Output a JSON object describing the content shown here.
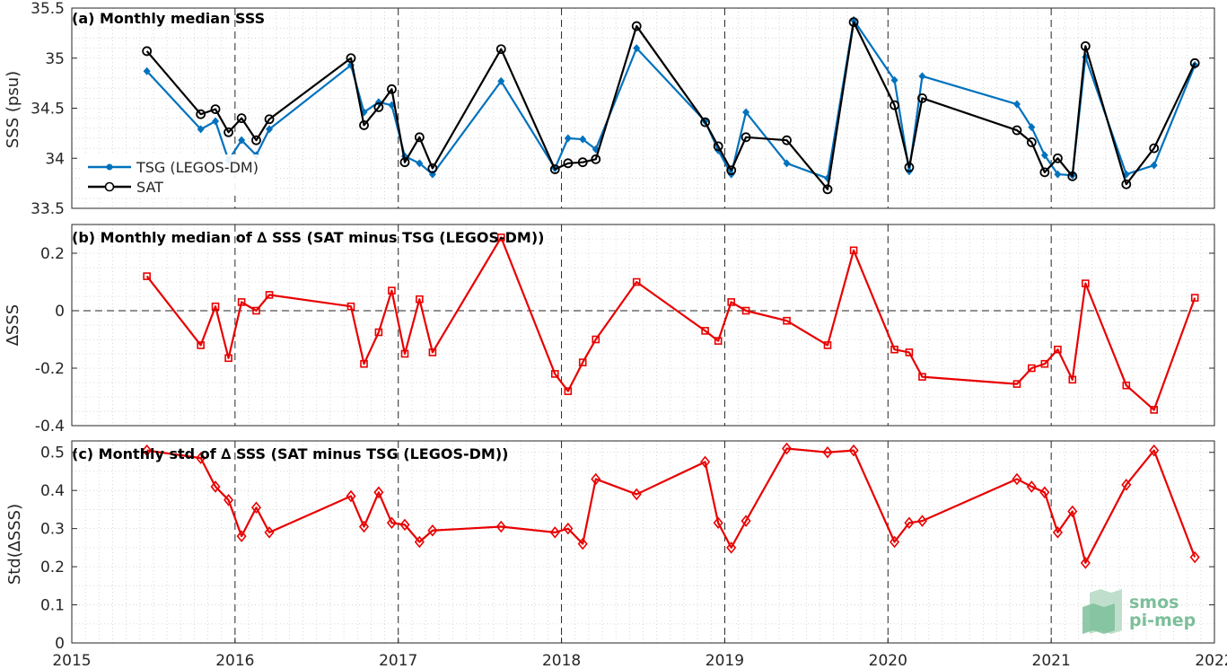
{
  "colors": {
    "tsg": "#0072BD",
    "sat": "#000000",
    "delta": "#E80000",
    "logo": "#7cbf9a"
  },
  "logo": {
    "line1": "smos",
    "line2": "pi-mep"
  },
  "chart_data": [
    {
      "type": "line",
      "title": "(a) Monthly median SSS",
      "ylabel": "SSS (psu)",
      "xlim": [
        2015,
        2022
      ],
      "ylim": [
        33.5,
        35.5
      ],
      "yticks": [
        "33.5",
        "34",
        "34.5",
        "35",
        "35.5"
      ],
      "grid": true,
      "legend": "center-left",
      "series": [
        {
          "name": "TSG (LEGOS-DM)",
          "marker": "dot",
          "x": [
            2015.46,
            2015.79,
            2015.88,
            2015.96,
            2016.04,
            2016.13,
            2016.21,
            2016.71,
            2016.79,
            2016.88,
            2016.96,
            2017.04,
            2017.13,
            2017.21,
            2017.63,
            2017.96,
            2018.04,
            2018.13,
            2018.21,
            2018.46,
            2018.88,
            2018.96,
            2019.04,
            2019.13,
            2019.38,
            2019.63,
            2019.79,
            2020.04,
            2020.13,
            2020.21,
            2020.79,
            2020.88,
            2020.96,
            2021.04,
            2021.13,
            2021.21,
            2021.46,
            2021.63,
            2021.88
          ],
          "y": [
            34.87,
            34.29,
            34.37,
            33.98,
            34.18,
            34.03,
            34.29,
            34.93,
            34.46,
            34.56,
            34.53,
            34.02,
            33.95,
            33.84,
            34.77,
            33.9,
            34.2,
            34.19,
            34.09,
            35.1,
            34.37,
            34.08,
            33.84,
            34.46,
            33.95,
            33.8,
            35.38,
            34.78,
            33.87,
            34.82,
            34.54,
            34.31,
            34.03,
            33.84,
            33.83,
            35.01,
            33.84,
            33.93,
            34.93
          ]
        },
        {
          "name": "SAT",
          "marker": "circle",
          "x": [
            2015.46,
            2015.79,
            2015.88,
            2015.96,
            2016.04,
            2016.13,
            2016.21,
            2016.71,
            2016.79,
            2016.88,
            2016.96,
            2017.04,
            2017.13,
            2017.21,
            2017.63,
            2017.96,
            2018.04,
            2018.13,
            2018.21,
            2018.46,
            2018.88,
            2018.96,
            2019.04,
            2019.13,
            2019.38,
            2019.63,
            2019.79,
            2020.04,
            2020.13,
            2020.21,
            2020.79,
            2020.88,
            2020.96,
            2021.04,
            2021.13,
            2021.21,
            2021.46,
            2021.63,
            2021.88
          ],
          "y": [
            35.07,
            34.44,
            34.49,
            34.26,
            34.4,
            34.18,
            34.39,
            35.0,
            34.33,
            34.51,
            34.69,
            33.96,
            34.21,
            33.9,
            35.09,
            33.89,
            33.95,
            33.96,
            33.99,
            35.32,
            34.36,
            34.12,
            33.88,
            34.21,
            34.18,
            33.69,
            35.36,
            34.53,
            33.91,
            34.6,
            34.28,
            34.16,
            33.86,
            34.0,
            33.82,
            35.12,
            33.74,
            34.1,
            34.95
          ]
        }
      ]
    },
    {
      "type": "line",
      "title": "(b) Monthly median of ∆ SSS (SAT minus TSG (LEGOS-DM))",
      "ylabel": "∆SSS",
      "xlim": [
        2015,
        2022
      ],
      "ylim": [
        -0.4,
        0.3
      ],
      "yticks": [
        "-0.4",
        "-0.2",
        "0",
        "0.2"
      ],
      "zero_line": true,
      "grid": true,
      "series": [
        {
          "name": "",
          "marker": "square",
          "x": [
            2015.46,
            2015.79,
            2015.88,
            2015.96,
            2016.04,
            2016.13,
            2016.21,
            2016.71,
            2016.79,
            2016.88,
            2016.96,
            2017.04,
            2017.13,
            2017.21,
            2017.63,
            2017.96,
            2018.04,
            2018.13,
            2018.21,
            2018.46,
            2018.88,
            2018.96,
            2019.04,
            2019.13,
            2019.38,
            2019.63,
            2019.79,
            2020.04,
            2020.13,
            2020.21,
            2020.79,
            2020.88,
            2020.96,
            2021.04,
            2021.13,
            2021.21,
            2021.46,
            2021.63,
            2021.88
          ],
          "y": [
            0.12,
            -0.12,
            0.015,
            -0.165,
            0.03,
            0.0,
            0.055,
            0.015,
            -0.185,
            -0.075,
            0.07,
            -0.15,
            0.04,
            -0.145,
            0.255,
            -0.22,
            -0.28,
            -0.18,
            -0.1,
            0.1,
            -0.07,
            -0.105,
            0.03,
            0.0,
            -0.035,
            -0.12,
            0.21,
            -0.135,
            -0.145,
            -0.23,
            -0.255,
            -0.2,
            -0.185,
            -0.135,
            -0.24,
            0.095,
            -0.26,
            -0.345,
            0.045
          ]
        }
      ]
    },
    {
      "type": "line",
      "title": "(c) Monthly std of ∆ SSS (SAT minus TSG (LEGOS-DM))",
      "ylabel": "Std(∆SSS)",
      "xlim": [
        2015,
        2022
      ],
      "ylim": [
        0,
        0.53
      ],
      "yticks": [
        "0",
        "0.1",
        "0.2",
        "0.3",
        "0.4",
        "0.5"
      ],
      "xticks": [
        "2015",
        "2016",
        "2017",
        "2018",
        "2019",
        "2020",
        "2021",
        "2022"
      ],
      "grid": true,
      "series": [
        {
          "name": "",
          "marker": "diamond",
          "x": [
            2015.46,
            2015.79,
            2015.88,
            2015.96,
            2016.04,
            2016.13,
            2016.21,
            2016.71,
            2016.79,
            2016.88,
            2016.96,
            2017.04,
            2017.13,
            2017.21,
            2017.63,
            2017.96,
            2018.04,
            2018.13,
            2018.21,
            2018.46,
            2018.88,
            2018.96,
            2019.04,
            2019.13,
            2019.38,
            2019.63,
            2019.79,
            2020.04,
            2020.13,
            2020.21,
            2020.79,
            2020.88,
            2020.96,
            2021.04,
            2021.13,
            2021.21,
            2021.46,
            2021.63,
            2021.88
          ],
          "y": [
            0.505,
            0.485,
            0.41,
            0.375,
            0.28,
            0.355,
            0.29,
            0.385,
            0.305,
            0.395,
            0.315,
            0.31,
            0.265,
            0.295,
            0.305,
            0.29,
            0.3,
            0.26,
            0.43,
            0.39,
            0.475,
            0.315,
            0.25,
            0.32,
            0.51,
            0.5,
            0.505,
            0.265,
            0.315,
            0.32,
            0.43,
            0.41,
            0.395,
            0.29,
            0.345,
            0.21,
            0.415,
            0.505,
            0.225
          ]
        }
      ]
    }
  ]
}
